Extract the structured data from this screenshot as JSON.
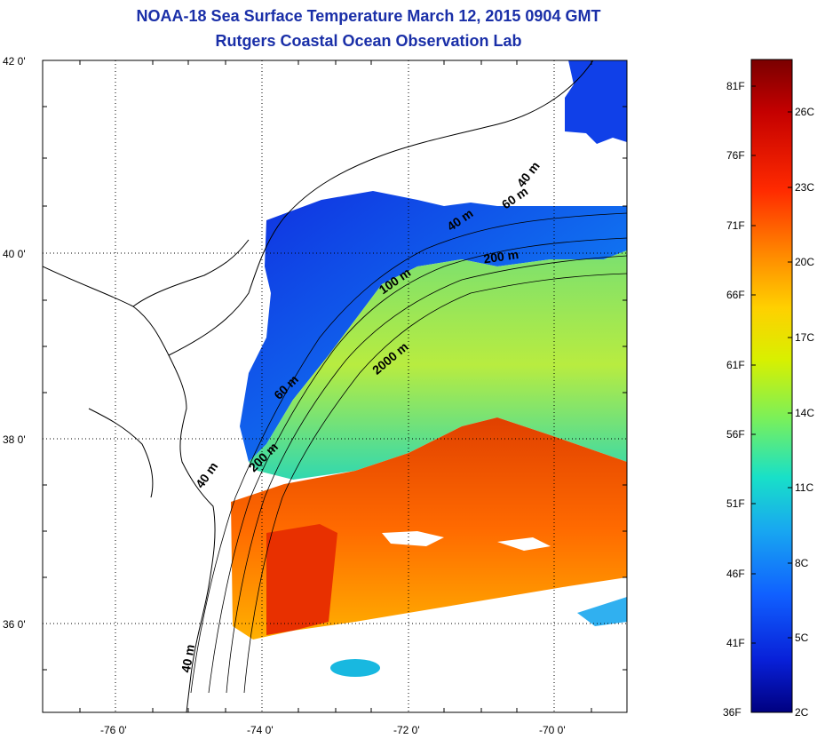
{
  "title": {
    "line1": "NOAA-18 Sea Surface Temperature March 12, 2015 0904 GMT",
    "line2": "Rutgers Coastal Ocean Observation Lab"
  },
  "map": {
    "lon_ticks": [
      "-76 0'",
      "-74 0'",
      "-72 0'",
      "-70 0'"
    ],
    "lat_ticks": [
      "42 0'",
      "40 0'",
      "38 0'",
      "36 0'"
    ],
    "contour_labels": [
      "40 m",
      "60 m",
      "40 m",
      "100 m",
      "200 m",
      "2000 m",
      "60 m",
      "200 m",
      "40 m",
      "40 m"
    ]
  },
  "colorbar": {
    "fahrenheit": [
      "81F",
      "76F",
      "71F",
      "66F",
      "61F",
      "56F",
      "51F",
      "46F",
      "41F",
      "36F"
    ],
    "celsius": [
      "26C",
      "23C",
      "20C",
      "17C",
      "14C",
      "11C",
      "8C",
      "5C",
      "2C"
    ],
    "colors": [
      "#7a0000",
      "#c40000",
      "#ff2a00",
      "#ff8a00",
      "#ffd000",
      "#d8f000",
      "#7af05a",
      "#18e0c8",
      "#18a8f0",
      "#1060ff",
      "#0820d8",
      "#000080"
    ]
  }
}
